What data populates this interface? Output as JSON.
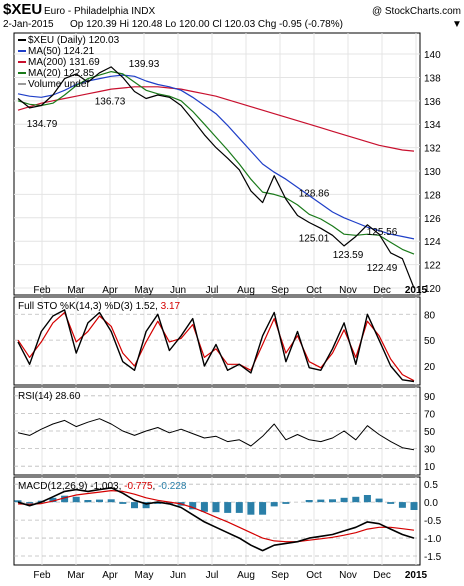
{
  "header": {
    "symbol": "$XEU",
    "name": "Euro - Philadelphia INDX",
    "watermark": "@ StockCharts.com",
    "date": "2-Jan-2015",
    "ohlc": "Op 120.39  Hi 120.48  Lo 120.00  Cl 120.03  Chg -0.95 (-0.78%)",
    "chg_arrow": "▼"
  },
  "legend": [
    {
      "label": "$XEU (Daily) 120.03",
      "color": "#000000"
    },
    {
      "label": "MA(50) 124.21",
      "color": "#1f3fc8"
    },
    {
      "label": "MA(200) 131.69",
      "color": "#c8102e"
    },
    {
      "label": "MA(20) 122.85",
      "color": "#1a7a1a"
    },
    {
      "label": "Volume undef",
      "color": "#9a9a9a"
    }
  ],
  "colors": {
    "price": "#000000",
    "ma50": "#1f3fc8",
    "ma200": "#c8102e",
    "ma20": "#1a7a1a",
    "stoK": "#000000",
    "stoD": "#d40000",
    "rsi": "#000000",
    "rsi_fill": "#8b5a4a",
    "macd": "#000000",
    "signal": "#d40000",
    "hist": "#2a7fa8"
  },
  "months": [
    "Feb",
    "Mar",
    "Apr",
    "May",
    "Jun",
    "Jul",
    "Aug",
    "Sep",
    "Oct",
    "Nov",
    "Dec",
    "2015"
  ],
  "panels": {
    "sto": {
      "label": "Full STO %K(14,3) %D(3) 1.52, ",
      "d_value": "3.17",
      "ticks": [
        "80",
        "50",
        "20"
      ],
      "tick_values": [
        80,
        50,
        20
      ]
    },
    "rsi": {
      "label": "RSI(14) 28.60",
      "ticks": [
        "90",
        "70",
        "50",
        "30",
        "10"
      ],
      "tick_values": [
        90,
        70,
        50,
        30,
        10
      ]
    },
    "macd": {
      "label": "MACD(12,26,9) -1.003, ",
      "signal_value": "-0.775",
      "hist_value": "-0.228",
      "ticks": [
        "0.5",
        "0.0",
        "-0.5",
        "-1.0",
        "-1.5"
      ],
      "tick_values": [
        0.5,
        0.0,
        -0.5,
        -1.0,
        -1.5
      ]
    }
  },
  "chart_data": {
    "type": "line",
    "title": "$XEU Euro - Philadelphia INDX",
    "price_axis": {
      "ticks": [
        120,
        122,
        124,
        126,
        128,
        130,
        132,
        134,
        136,
        138,
        140
      ],
      "ylim": [
        119.4,
        141.8
      ]
    },
    "annotations": [
      {
        "text": "139.93",
        "x": "May",
        "y": 139.93
      },
      {
        "text": "136.73",
        "x": "Apr",
        "y": 136.73
      },
      {
        "text": "134.79",
        "x": "Feb",
        "y": 134.79
      },
      {
        "text": "128.86",
        "x": "Oct",
        "y": 128.86
      },
      {
        "text": "125.56",
        "x": "Dec",
        "y": 125.56
      },
      {
        "text": "125.01",
        "x": "Oct",
        "y": 125.01
      },
      {
        "text": "123.59",
        "x": "Nov",
        "y": 123.59
      },
      {
        "text": "122.49",
        "x": "Dec",
        "y": 122.49
      }
    ],
    "x_ticks": [
      "Feb",
      "Mar",
      "Apr",
      "May",
      "Jun",
      "Jul",
      "Aug",
      "Sep",
      "Oct",
      "Nov",
      "Dec",
      "2015"
    ],
    "series": [
      {
        "name": "$XEU (Daily) 120.03",
        "values": [
          136.2,
          135.4,
          135.6,
          136.5,
          137.9,
          138.3,
          137.6,
          138.4,
          138.9,
          138.0,
          136.8,
          136.2,
          136.5,
          136.3,
          135.6,
          134.4,
          133.1,
          132.0,
          131.1,
          130.1,
          128.3,
          127.3,
          129.6,
          127.6,
          126.2,
          125.6,
          125.1,
          124.5,
          123.6,
          124.4,
          125.4,
          124.6,
          123.0,
          122.5,
          120.0
        ]
      },
      {
        "name": "MA(50) 124.21",
        "values": [
          136.6,
          136.4,
          136.3,
          136.5,
          136.9,
          137.4,
          137.7,
          137.9,
          138.1,
          138.2,
          138.1,
          137.7,
          137.4,
          137.2,
          136.9,
          136.3,
          135.6,
          134.9,
          133.9,
          132.8,
          131.7,
          130.6,
          129.9,
          129.3,
          128.6,
          127.9,
          127.2,
          126.5,
          126.0,
          125.6,
          125.2,
          124.9,
          124.6,
          124.4,
          124.2
        ]
      },
      {
        "name": "MA(200) 131.69",
        "values": [
          135.2,
          135.5,
          135.8,
          136.0,
          136.2,
          136.4,
          136.6,
          136.8,
          137.0,
          137.1,
          137.2,
          137.2,
          137.2,
          137.1,
          137.0,
          136.8,
          136.6,
          136.4,
          136.1,
          135.8,
          135.5,
          135.2,
          134.9,
          134.6,
          134.3,
          134.0,
          133.7,
          133.4,
          133.1,
          132.8,
          132.5,
          132.2,
          132.0,
          131.8,
          131.7
        ]
      },
      {
        "name": "MA(20) 122.85",
        "values": [
          136.0,
          135.7,
          135.6,
          135.8,
          136.5,
          137.3,
          137.9,
          138.2,
          138.5,
          138.3,
          137.6,
          136.9,
          136.6,
          136.4,
          136.0,
          135.1,
          134.0,
          132.9,
          131.8,
          130.6,
          129.3,
          128.2,
          128.0,
          127.7,
          127.1,
          126.3,
          125.9,
          125.3,
          124.6,
          124.5,
          124.6,
          124.5,
          123.9,
          123.3,
          122.9
        ]
      },
      {
        "name": "%K",
        "values": [
          48,
          22,
          60,
          78,
          85,
          35,
          70,
          82,
          60,
          25,
          15,
          60,
          80,
          38,
          55,
          75,
          20,
          45,
          15,
          22,
          12,
          55,
          82,
          25,
          60,
          18,
          15,
          40,
          70,
          22,
          80,
          50,
          20,
          4,
          2
        ]
      },
      {
        "name": "%D",
        "values": [
          50,
          30,
          48,
          70,
          82,
          48,
          60,
          78,
          66,
          35,
          20,
          48,
          72,
          48,
          52,
          68,
          30,
          40,
          22,
          22,
          15,
          45,
          75,
          35,
          55,
          25,
          18,
          35,
          62,
          30,
          72,
          55,
          28,
          10,
          3
        ]
      },
      {
        "name": "RSI(14) 28.60",
        "values": [
          48,
          45,
          52,
          58,
          62,
          55,
          60,
          64,
          58,
          50,
          45,
          50,
          54,
          48,
          52,
          47,
          42,
          44,
          38,
          40,
          33,
          44,
          58,
          40,
          46,
          40,
          38,
          42,
          50,
          40,
          56,
          46,
          38,
          31,
          28.6
        ]
      },
      {
        "name": "MACD(12,26,9) -1.003",
        "values": [
          0.0,
          -0.1,
          0.0,
          0.15,
          0.3,
          0.35,
          0.3,
          0.35,
          0.4,
          0.25,
          0.05,
          -0.05,
          0.0,
          -0.05,
          -0.15,
          -0.35,
          -0.55,
          -0.7,
          -0.85,
          -1.0,
          -1.2,
          -1.35,
          -1.2,
          -1.15,
          -1.1,
          -1.0,
          -0.95,
          -0.9,
          -0.8,
          -0.7,
          -0.55,
          -0.6,
          -0.75,
          -0.9,
          -1.0
        ]
      },
      {
        "name": "-0.775",
        "values": [
          -0.05,
          -0.06,
          -0.04,
          0.03,
          0.12,
          0.2,
          0.24,
          0.28,
          0.32,
          0.3,
          0.22,
          0.12,
          0.05,
          0.0,
          -0.05,
          -0.15,
          -0.28,
          -0.42,
          -0.55,
          -0.7,
          -0.85,
          -1.0,
          -1.08,
          -1.1,
          -1.1,
          -1.06,
          -1.02,
          -0.98,
          -0.92,
          -0.85,
          -0.75,
          -0.7,
          -0.7,
          -0.74,
          -0.78
        ]
      }
    ]
  }
}
